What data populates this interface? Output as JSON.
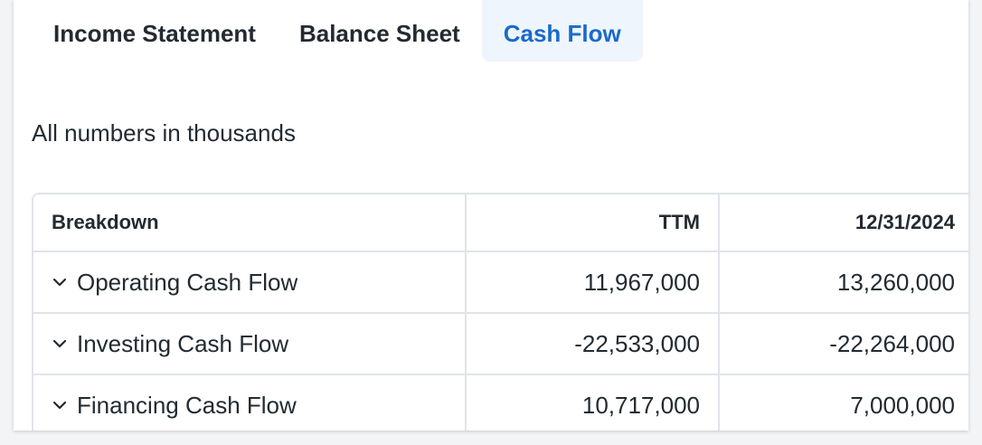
{
  "tabs": [
    {
      "label": "Income Statement",
      "active": false
    },
    {
      "label": "Balance Sheet",
      "active": false
    },
    {
      "label": "Cash Flow",
      "active": true
    }
  ],
  "unit_note": "All numbers in thousands",
  "table": {
    "headers": {
      "breakdown": "Breakdown",
      "col1": "TTM",
      "col2": "12/31/2024"
    },
    "rows": [
      {
        "label": "Operating Cash Flow",
        "col1": "11,967,000",
        "col2": "13,260,000",
        "icon": "chevron-down-icon"
      },
      {
        "label": "Investing Cash Flow",
        "col1": "-22,533,000",
        "col2": "-22,264,000",
        "icon": "chevron-down-icon"
      },
      {
        "label": "Financing Cash Flow",
        "col1": "10,717,000",
        "col2": "7,000,000",
        "icon": "chevron-down-icon"
      }
    ]
  },
  "colors": {
    "accent": "#1a6ac9",
    "active_tab_bg": "#eef5fc",
    "text": "#232a31",
    "border": "#e0e4e9"
  }
}
